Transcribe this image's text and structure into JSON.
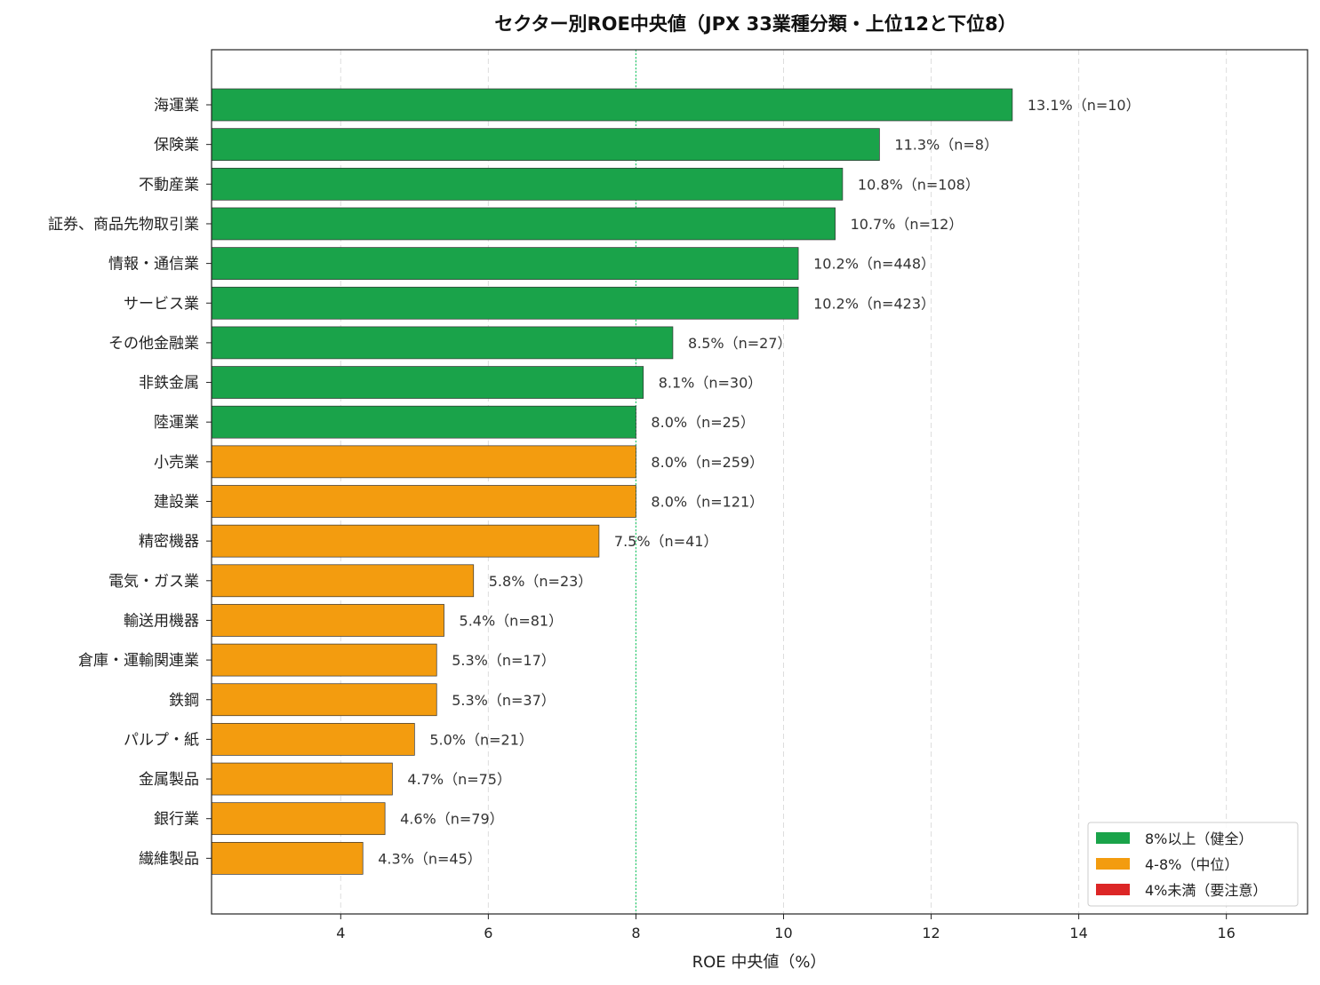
{
  "chart_data": {
    "type": "bar",
    "orientation": "horizontal",
    "title": "セクター別ROE中央値（JPX 33業種分類・上位12と下位8）",
    "xlabel": "ROE 中央値（%）",
    "ylabel": "",
    "xlim": [
      2.25,
      17.1
    ],
    "xticks": [
      "4",
      "6",
      "8",
      "10",
      "12",
      "14",
      "16"
    ],
    "grid": "x-dashed",
    "reference_line": 8,
    "legend_position": "lower-right",
    "categories": [
      "海運業",
      "保険業",
      "不動産業",
      "証券、商品先物取引業",
      "情報・通信業",
      "サービス業",
      "その他金融業",
      "非鉄金属",
      "陸運業",
      "小売業",
      "建設業",
      "精密機器",
      "電気・ガス業",
      "輸送用機器",
      "倉庫・運輸関連業",
      "鉄鋼",
      "パルプ・紙",
      "金属製品",
      "銀行業",
      "繊維製品"
    ],
    "values": [
      13.1,
      11.3,
      10.8,
      10.7,
      10.2,
      10.2,
      8.5,
      8.1,
      8.0,
      8.0,
      8.0,
      7.5,
      5.8,
      5.4,
      5.3,
      5.3,
      5.0,
      4.7,
      4.6,
      4.3
    ],
    "groups": [
      "healthy",
      "healthy",
      "healthy",
      "healthy",
      "healthy",
      "healthy",
      "healthy",
      "healthy",
      "healthy",
      "mid",
      "mid",
      "mid",
      "mid",
      "mid",
      "mid",
      "mid",
      "mid",
      "mid",
      "mid",
      "mid"
    ],
    "bar_labels": [
      "13.1%（n=10）",
      "11.3%（n=8）",
      "10.8%（n=108）",
      "10.7%（n=12）",
      "10.2%（n=448）",
      "10.2%（n=423）",
      "8.5%（n=27）",
      "8.1%（n=30）",
      "8.0%（n=25）",
      "8.0%（n=259）",
      "8.0%（n=121）",
      "7.5%（n=41）",
      "5.8%（n=23）",
      "5.4%（n=81）",
      "5.3%（n=17）",
      "5.3%（n=37）",
      "5.0%（n=21）",
      "4.7%（n=75）",
      "4.6%（n=79）",
      "4.3%（n=45）"
    ],
    "legend": [
      {
        "key": "healthy",
        "label": "8%以上（健全）",
        "color": "#1aa34a"
      },
      {
        "key": "mid",
        "label": "4-8%（中位）",
        "color": "#f39c0f"
      },
      {
        "key": "caution",
        "label": "4%未満（要注意）",
        "color": "#dc2626"
      }
    ],
    "colors": {
      "reference_line": "#2ecc71"
    }
  }
}
